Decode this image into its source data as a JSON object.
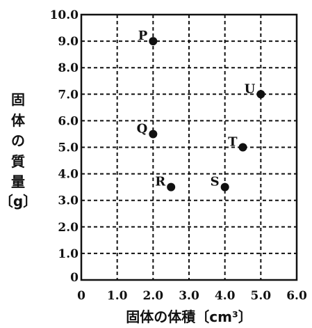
{
  "chart_data": {
    "type": "scatter",
    "title": "",
    "xlabel": "固体の体積〔cm³〕",
    "ylabel_chars": [
      "固",
      "体",
      "の",
      "質",
      "量",
      "〔g〕"
    ],
    "xlim": [
      0,
      6
    ],
    "ylim": [
      0,
      10
    ],
    "grid": true,
    "x_ticks": [
      "0",
      "1.0",
      "2.0",
      "3.0",
      "4.0",
      "5.0",
      "6.0"
    ],
    "y_ticks": [
      "0",
      "1.0",
      "2.0",
      "3.0",
      "4.0",
      "5.0",
      "6.0",
      "7.0",
      "8.0",
      "9.0",
      "10.0"
    ],
    "points": [
      {
        "label": "P",
        "x": 2.0,
        "y": 9.0
      },
      {
        "label": "Q",
        "x": 2.0,
        "y": 5.5
      },
      {
        "label": "R",
        "x": 2.5,
        "y": 3.5
      },
      {
        "label": "S",
        "x": 4.0,
        "y": 3.5
      },
      {
        "label": "T",
        "x": 4.5,
        "y": 5.0
      },
      {
        "label": "U",
        "x": 5.0,
        "y": 7.0
      }
    ]
  }
}
